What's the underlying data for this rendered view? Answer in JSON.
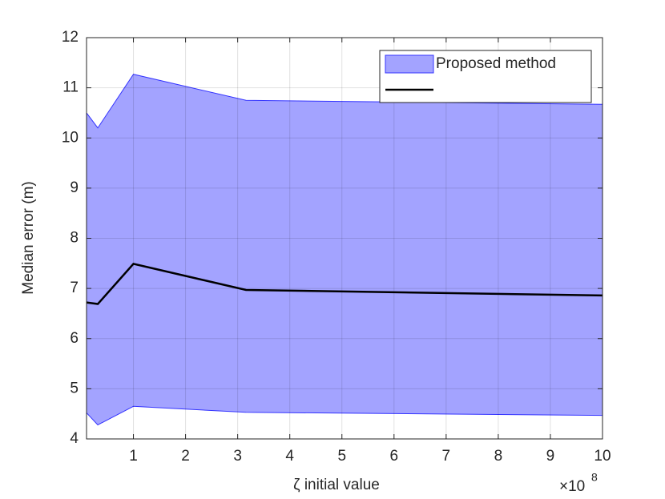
{
  "chart_data": {
    "type": "line",
    "x_label": "ζ initial value",
    "y_label": "Median error (m)",
    "x_exponent": {
      "base": "×10",
      "power": "8"
    },
    "x": [
      0.1,
      0.316,
      1,
      3.16,
      10
    ],
    "series": [
      {
        "name": "Proposed method",
        "kind": "band",
        "color": "#a3a3ff",
        "edge_color": "#3434ff",
        "upper": [
          10.5,
          10.2,
          11.27,
          10.75,
          10.67
        ],
        "lower": [
          4.52,
          4.28,
          4.65,
          4.53,
          4.47
        ]
      },
      {
        "kind": "line",
        "color": "#000000",
        "values": [
          6.72,
          6.69,
          7.49,
          6.97,
          6.86
        ]
      }
    ],
    "xlim": [
      0.1,
      10
    ],
    "xticks": [
      1,
      2,
      3,
      4,
      5,
      6,
      7,
      8,
      9,
      10
    ],
    "ylim": [
      4,
      12
    ],
    "yticks": [
      4,
      5,
      6,
      7,
      8,
      9,
      10,
      11,
      12
    ],
    "grid": true,
    "legend": "northeast"
  }
}
